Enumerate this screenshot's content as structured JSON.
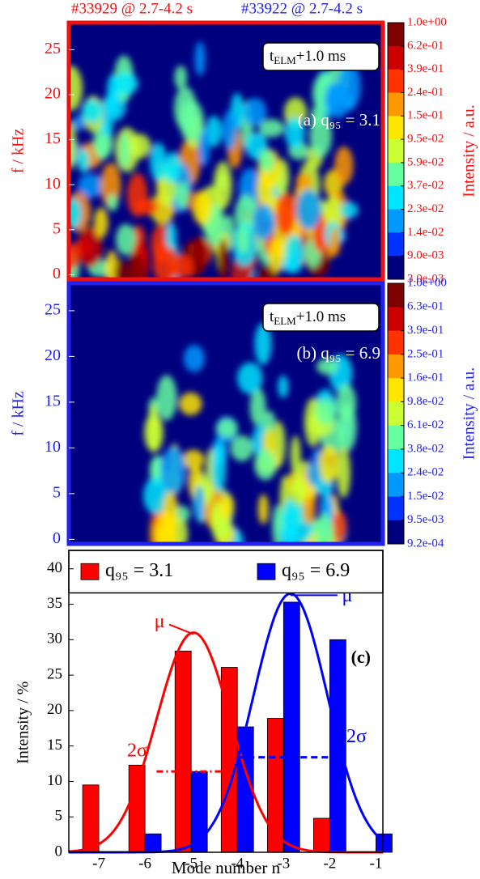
{
  "chart_data": [
    {
      "type": "heatmap",
      "top_label": "#33929 @ 2.7-4.2 s",
      "color": "#ee1111",
      "ylabel": "f / kHz",
      "ylim": [
        -0.5,
        28
      ],
      "yticks": [
        0,
        5,
        10,
        15,
        20,
        25
      ],
      "annotation": [
        "t",
        "ELM",
        "+1.0 ms"
      ],
      "panel_label": "(a) q₉₅ = 3.1",
      "colorbar": {
        "label": "Intensity / a.u.",
        "ticks": [
          {
            "value": 1.0,
            "label": "1.0e+00"
          },
          {
            "value": 0.62,
            "label": "6.2e-01"
          },
          {
            "value": 0.39,
            "label": "3.9e-01"
          },
          {
            "value": 0.24,
            "label": "2.4e-01"
          },
          {
            "value": 0.15,
            "label": "1.5e-01"
          },
          {
            "value": 0.095,
            "label": "9.5e-02"
          },
          {
            "value": 0.059,
            "label": "5.9e-02"
          },
          {
            "value": 0.037,
            "label": "3.7e-02"
          },
          {
            "value": 0.023,
            "label": "2.3e-02"
          },
          {
            "value": 0.014,
            "label": "1.4e-02"
          },
          {
            "value": 0.009,
            "label": "9.0e-03"
          },
          {
            "value": 0.003,
            "label": "3.0e-03"
          }
        ],
        "colors": [
          "#7f0000",
          "#cc0000",
          "#ff3300",
          "#ff9900",
          "#ffe600",
          "#ccff33",
          "#66ffa0",
          "#00e5ff",
          "#0099ff",
          "#0033ff",
          "#00007f"
        ]
      }
    },
    {
      "type": "heatmap",
      "top_label": "#33922 @ 2.7-4.2 s",
      "color": "#2222ee",
      "ylabel": "f / kHz",
      "ylim": [
        -0.5,
        28
      ],
      "yticks": [
        0,
        5,
        10,
        15,
        20,
        25
      ],
      "annotation": [
        "t",
        "ELM",
        "+1.0 ms"
      ],
      "panel_label": "(b) q₉₅ = 6.9",
      "colorbar": {
        "label": "Intensity / a.u.",
        "ticks": [
          {
            "value": 1.0,
            "label": "1.0e+00"
          },
          {
            "value": 0.63,
            "label": "6.3e-01"
          },
          {
            "value": 0.39,
            "label": "3.9e-01"
          },
          {
            "value": 0.25,
            "label": "2.5e-01"
          },
          {
            "value": 0.16,
            "label": "1.6e-01"
          },
          {
            "value": 0.098,
            "label": "9.8e-02"
          },
          {
            "value": 0.061,
            "label": "6.1e-02"
          },
          {
            "value": 0.038,
            "label": "3.8e-02"
          },
          {
            "value": 0.024,
            "label": "2.4e-02"
          },
          {
            "value": 0.015,
            "label": "1.5e-02"
          },
          {
            "value": 0.0095,
            "label": "9.5e-03"
          },
          {
            "value": 0.00092,
            "label": "9.2e-04"
          }
        ],
        "colors": [
          "#7f0000",
          "#cc0000",
          "#ff3300",
          "#ff9900",
          "#ffe600",
          "#ccff33",
          "#66ffa0",
          "#00e5ff",
          "#0099ff",
          "#0033ff",
          "#00007f"
        ]
      }
    },
    {
      "type": "bar",
      "xlabel": "Mode number n",
      "ylabel": "Intensity / %",
      "panel_label": "(c)",
      "x": [
        -7,
        -6,
        -5,
        -4,
        -3,
        -2,
        -1
      ],
      "xlim": [
        -7.65,
        -0.85
      ],
      "xticks": [
        -7,
        -6,
        -5,
        -4,
        -3,
        -2,
        -1
      ],
      "ylim": [
        0,
        42.6
      ],
      "yticks": [
        0,
        5,
        10,
        15,
        20,
        25,
        30,
        35,
        40
      ],
      "series": [
        {
          "name": "q₉₅ = 3.1",
          "color": "#ff0000",
          "values": [
            9.5,
            12.3,
            28.4,
            26.1,
            18.9,
            4.8,
            0
          ]
        },
        {
          "name": "q₉₅ = 6.9",
          "color": "#0000ff",
          "values": [
            0,
            2.6,
            11.4,
            17.7,
            35.3,
            30.0,
            2.6
          ]
        }
      ],
      "fits": [
        {
          "color": "#ff0000",
          "amplitude": 31,
          "mu": -4.95,
          "sigma": 0.8,
          "mu_label": "μ",
          "sigma_label": "2σ",
          "sigma_line": {
            "y": 11.4,
            "x0": -5.75,
            "x1": -4.1
          }
        },
        {
          "color": "#0000ff",
          "amplitude": 36.5,
          "mu": -2.85,
          "sigma": 0.8,
          "mu_label": "μ",
          "sigma_label": "2σ",
          "sigma_line": {
            "y": 13.4,
            "x0": -4.0,
            "x1": -1.85
          }
        }
      ]
    }
  ]
}
